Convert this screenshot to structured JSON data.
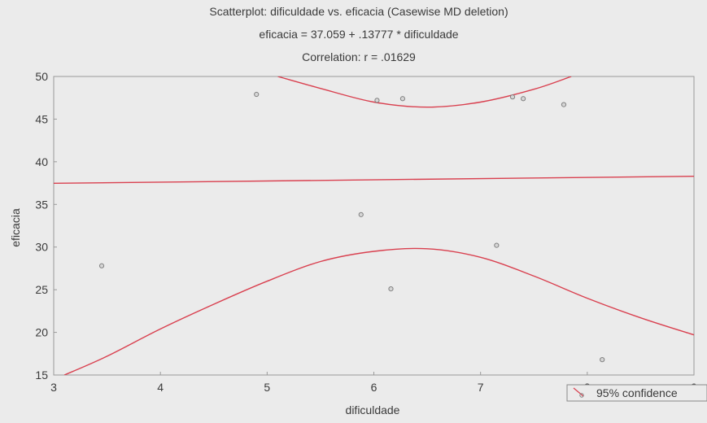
{
  "chart_data": {
    "type": "scatter",
    "title_lines": [
      "Scatterplot: dificuldade vs. eficacia (Casewise MD deletion)",
      "eficacia = 37.059 + .13777 * dificuldade",
      "Correlation: r = .01629"
    ],
    "xlabel": "dificuldade",
    "ylabel": "eficacia",
    "xlim": [
      3,
      9
    ],
    "ylim": [
      15,
      50
    ],
    "x_ticks": [
      "3",
      "4",
      "5",
      "6",
      "7",
      "8",
      "9"
    ],
    "y_ticks": [
      "15",
      "20",
      "25",
      "30",
      "35",
      "40",
      "45",
      "50"
    ],
    "points": [
      {
        "x": 3.45,
        "y": 27.8
      },
      {
        "x": 4.9,
        "y": 47.9
      },
      {
        "x": 5.88,
        "y": 33.8
      },
      {
        "x": 6.03,
        "y": 47.2
      },
      {
        "x": 6.16,
        "y": 25.1
      },
      {
        "x": 6.27,
        "y": 47.4
      },
      {
        "x": 7.15,
        "y": 30.2
      },
      {
        "x": 7.3,
        "y": 47.6
      },
      {
        "x": 7.4,
        "y": 47.4
      },
      {
        "x": 7.78,
        "y": 46.7
      },
      {
        "x": 8.14,
        "y": 16.8
      }
    ],
    "regression": {
      "intercept": 37.059,
      "slope": 0.13777
    },
    "confidence_upper": [
      {
        "x": 5.1,
        "y": 50
      },
      {
        "x": 5.5,
        "y": 48.6
      },
      {
        "x": 6.0,
        "y": 47.0
      },
      {
        "x": 6.5,
        "y": 46.4
      },
      {
        "x": 7.0,
        "y": 47.0
      },
      {
        "x": 7.5,
        "y": 48.5
      },
      {
        "x": 7.85,
        "y": 50
      }
    ],
    "confidence_lower": [
      {
        "x": 3.1,
        "y": 15.0
      },
      {
        "x": 3.5,
        "y": 17.2
      },
      {
        "x": 4.0,
        "y": 20.4
      },
      {
        "x": 4.5,
        "y": 23.3
      },
      {
        "x": 5.0,
        "y": 26.0
      },
      {
        "x": 5.5,
        "y": 28.3
      },
      {
        "x": 6.0,
        "y": 29.5
      },
      {
        "x": 6.5,
        "y": 29.8
      },
      {
        "x": 7.0,
        "y": 28.8
      },
      {
        "x": 7.5,
        "y": 26.6
      },
      {
        "x": 8.0,
        "y": 24.0
      },
      {
        "x": 8.5,
        "y": 21.7
      },
      {
        "x": 9.0,
        "y": 19.7
      }
    ],
    "legend": {
      "label": "95% confidence",
      "placement": "bottom-right"
    },
    "grid": false,
    "colors": {
      "line": "#d9404f",
      "points": "#808080",
      "background": "#ebebeb",
      "text": "#3a3a3a"
    }
  }
}
